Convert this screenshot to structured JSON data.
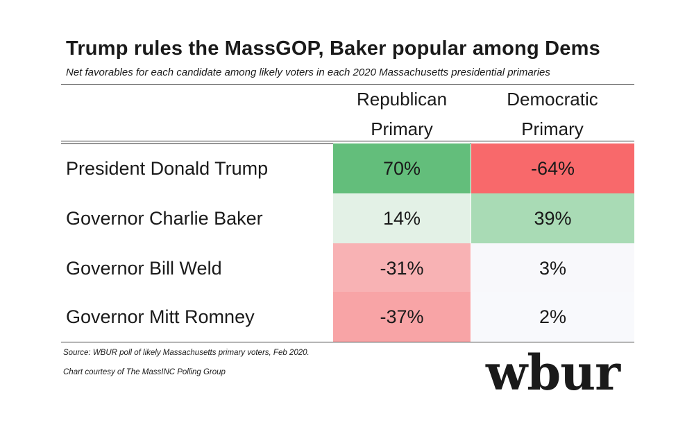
{
  "title": "Trump rules the MassGOP, Baker popular among Dems",
  "subtitle": "Net favorables for each candidate among likely voters in each 2020 Massachusetts presidential primaries",
  "columns": [
    {
      "line1": "Republican",
      "line2": "Primary"
    },
    {
      "line1": "Democratic",
      "line2": "Primary"
    }
  ],
  "rows": [
    {
      "label": "President Donald Trump",
      "rep": "70%",
      "dem": "-64%",
      "rep_bg": "#63be7b",
      "dem_bg": "#f8696b"
    },
    {
      "label": "Governor Charlie Baker",
      "rep": "14%",
      "dem": "39%",
      "rep_bg": "#e3f1e6",
      "dem_bg": "#a9dbb5"
    },
    {
      "label": "Governor Bill Weld",
      "rep": "-31%",
      "dem": "3%",
      "rep_bg": "#f8b2b4",
      "dem_bg": "#f8f8fb"
    },
    {
      "label": "Governor Mitt Romney",
      "rep": "-37%",
      "dem": "2%",
      "rep_bg": "#f8a4a6",
      "dem_bg": "#f8f9fc"
    }
  ],
  "source": "Source: WBUR poll of likely Massachusetts primary voters, Feb 2020.",
  "credit": "Chart courtesy of The MassINC Polling Group",
  "logo": "wbur",
  "chart_data": {
    "type": "table",
    "title": "Trump rules the MassGOP, Baker popular among Dems",
    "subtitle": "Net favorables for each candidate among likely voters in each 2020 Massachusetts presidential primaries",
    "columns": [
      "Republican Primary",
      "Democratic Primary"
    ],
    "categories": [
      "President Donald Trump",
      "Governor Charlie Baker",
      "Governor Bill Weld",
      "Governor Mitt Romney"
    ],
    "series": [
      {
        "name": "Republican Primary",
        "values": [
          70,
          14,
          -31,
          -37
        ]
      },
      {
        "name": "Democratic Primary",
        "values": [
          -64,
          39,
          3,
          2
        ]
      }
    ],
    "unit": "%"
  }
}
